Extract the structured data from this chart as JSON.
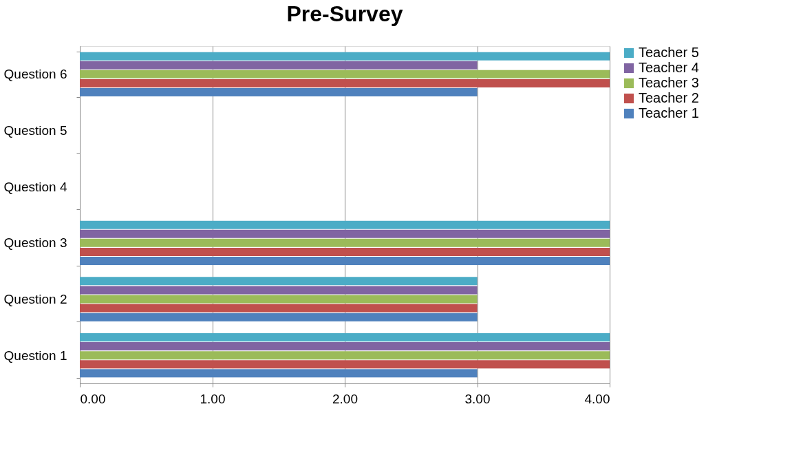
{
  "chart_data": {
    "type": "bar",
    "orientation": "horizontal",
    "title": "Pre-Survey",
    "categories": [
      "Question 6",
      "Question 5",
      "Question 4",
      "Question 3",
      "Question 2",
      "Question 1"
    ],
    "series": [
      {
        "name": "Teacher 1",
        "color": "#4f81bd",
        "values": [
          3,
          null,
          null,
          4,
          3,
          3
        ]
      },
      {
        "name": "Teacher 2",
        "color": "#c0504d",
        "values": [
          4,
          null,
          null,
          4,
          3,
          4
        ]
      },
      {
        "name": "Teacher 3",
        "color": "#9bbb59",
        "values": [
          4,
          null,
          null,
          4,
          3,
          4
        ]
      },
      {
        "name": "Teacher 4",
        "color": "#8064a2",
        "values": [
          3,
          null,
          null,
          4,
          3,
          4
        ]
      },
      {
        "name": "Teacher 5",
        "color": "#4bacc6",
        "values": [
          4,
          null,
          null,
          4,
          3,
          4
        ]
      }
    ],
    "xlim": [
      0,
      4
    ],
    "xticks": [
      {
        "value": 0,
        "label": "0.00"
      },
      {
        "value": 1,
        "label": "1.00"
      },
      {
        "value": 2,
        "label": "2.00"
      },
      {
        "value": 3,
        "label": "3.00"
      },
      {
        "value": 4,
        "label": "4.00"
      }
    ],
    "grid": "x",
    "legend": "right"
  }
}
